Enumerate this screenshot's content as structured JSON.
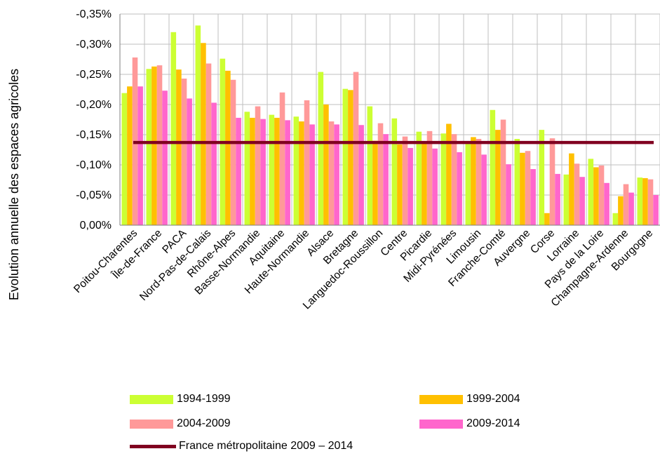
{
  "chart_data": {
    "type": "bar",
    "ylabel": "Evolution annuelle des espaces agricoles",
    "ylim": [
      0,
      -0.35
    ],
    "yticks": [
      "0,00%",
      "-0,05%",
      "-0,10%",
      "-0,15%",
      "-0,20%",
      "-0,25%",
      "-0,30%",
      "-0,35%"
    ],
    "grid": true,
    "legend_position": "bottom",
    "categories": [
      "Poitou-Charentes",
      "Île-de-France",
      "PACA",
      "Nord-Pas-de-Calais",
      "Rhône-Alpes",
      "Basse-Normandie",
      "Aquitaine",
      "Haute-Normandie",
      "Alsace",
      "Bretagne",
      "Languedoc-Roussillon",
      "Centre",
      "Picardie",
      "Midi-Pyrénées",
      "Limousin",
      "Franche-Comté",
      "Auvergne",
      "Corse",
      "Lorraine",
      "Pays de la Loire",
      "Champagne-Ardenne",
      "Bourgogne"
    ],
    "series": [
      {
        "name": "1994-1999",
        "color": "#ccff33",
        "values": [
          -0.219,
          -0.259,
          -0.32,
          -0.331,
          -0.276,
          -0.188,
          -0.183,
          -0.18,
          -0.254,
          -0.226,
          -0.197,
          -0.177,
          -0.155,
          -0.152,
          -0.136,
          -0.191,
          -0.143,
          -0.158,
          -0.084,
          -0.11,
          -0.02,
          -0.079
        ]
      },
      {
        "name": "1999-2004",
        "color": "#ffc000",
        "values": [
          -0.23,
          -0.263,
          -0.258,
          -0.302,
          -0.256,
          -0.178,
          -0.178,
          -0.172,
          -0.2,
          -0.224,
          -0.14,
          -0.134,
          -0.137,
          -0.168,
          -0.146,
          -0.158,
          -0.12,
          -0.02,
          -0.119,
          -0.096,
          -0.048,
          -0.078
        ]
      },
      {
        "name": "2004-2009",
        "color": "#ff9999",
        "values": [
          -0.278,
          -0.265,
          -0.243,
          -0.268,
          -0.241,
          -0.197,
          -0.22,
          -0.207,
          -0.172,
          -0.254,
          -0.169,
          -0.147,
          -0.156,
          -0.151,
          -0.143,
          -0.175,
          -0.123,
          -0.144,
          -0.102,
          -0.099,
          -0.068,
          -0.076
        ]
      },
      {
        "name": "2009-2014",
        "color": "#ff66cc",
        "values": [
          -0.23,
          -0.223,
          -0.21,
          -0.203,
          -0.178,
          -0.176,
          -0.174,
          -0.167,
          -0.167,
          -0.166,
          -0.151,
          -0.128,
          -0.127,
          -0.121,
          -0.117,
          -0.101,
          -0.093,
          -0.085,
          -0.08,
          -0.07,
          -0.054,
          -0.05
        ]
      }
    ],
    "reference_line": {
      "name": "France métropolitaine 2009 – 2014",
      "color": "#800020",
      "value": -0.137
    }
  }
}
